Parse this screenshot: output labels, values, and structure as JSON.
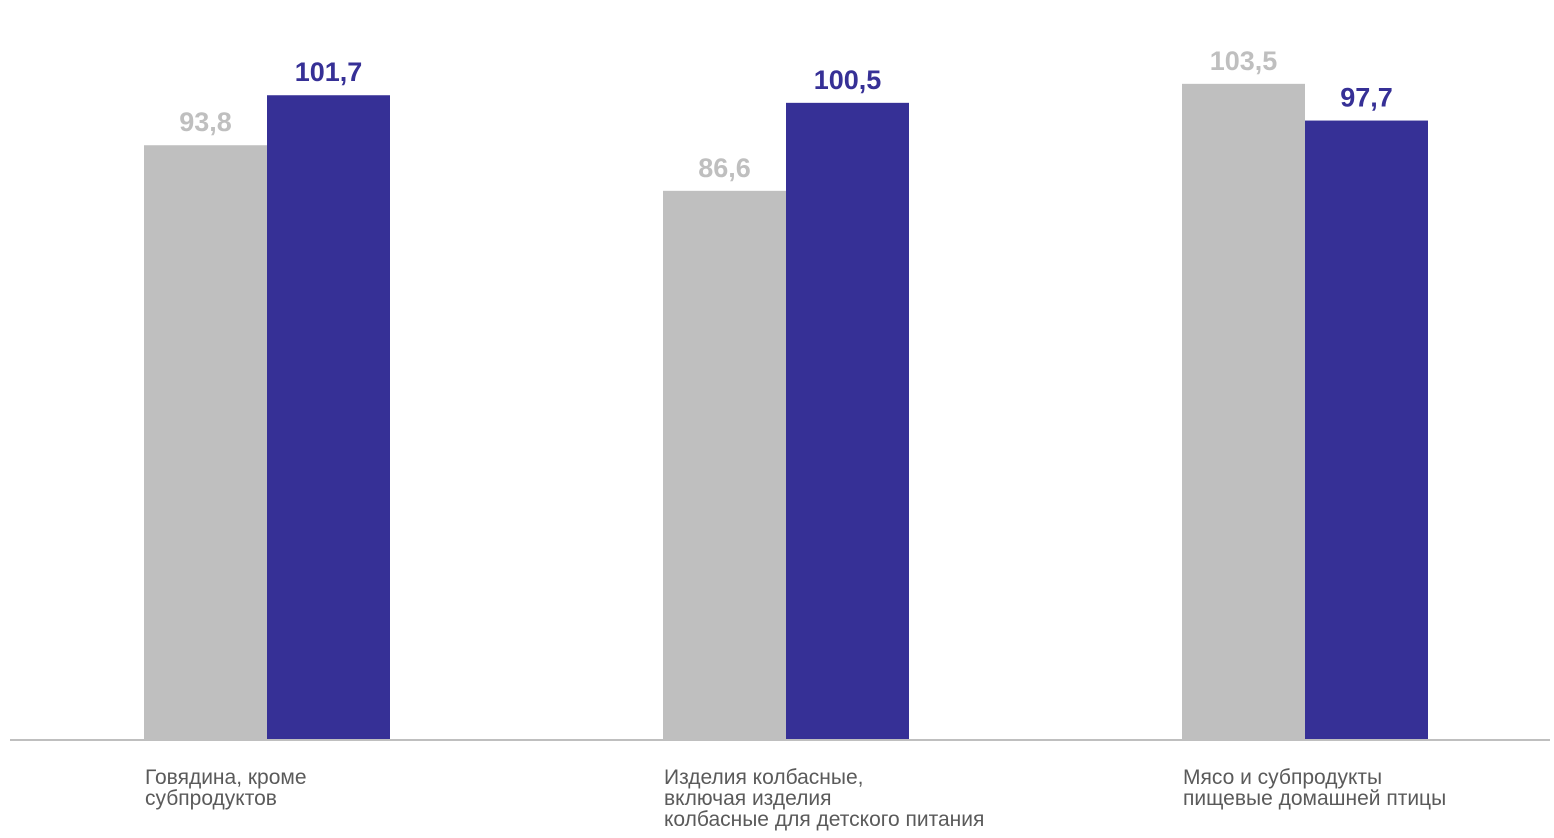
{
  "chart_data": {
    "type": "bar",
    "categories": [
      [
        "Говядина, кроме",
        "субпродуктов"
      ],
      [
        "Изделия колбасные,",
        "включая изделия",
        "колбасные для детского питания"
      ],
      [
        "Мясо и субпродукты",
        "пищевые домашней птицы"
      ]
    ],
    "series": [
      {
        "values": [
          93.8,
          86.6,
          103.5
        ],
        "labels": [
          "93,8",
          "86,6",
          "103,5"
        ],
        "color": "#bfbfbf"
      },
      {
        "values": [
          101.7,
          100.5,
          97.7
        ],
        "labels": [
          "101,7",
          "100,5",
          "97,7"
        ],
        "color": "#363096"
      }
    ],
    "title": "",
    "xlabel": "",
    "ylabel": "",
    "ylim": [
      0,
      110
    ],
    "grid": false,
    "legend": "none",
    "axis_color": "#bfbfbf"
  }
}
